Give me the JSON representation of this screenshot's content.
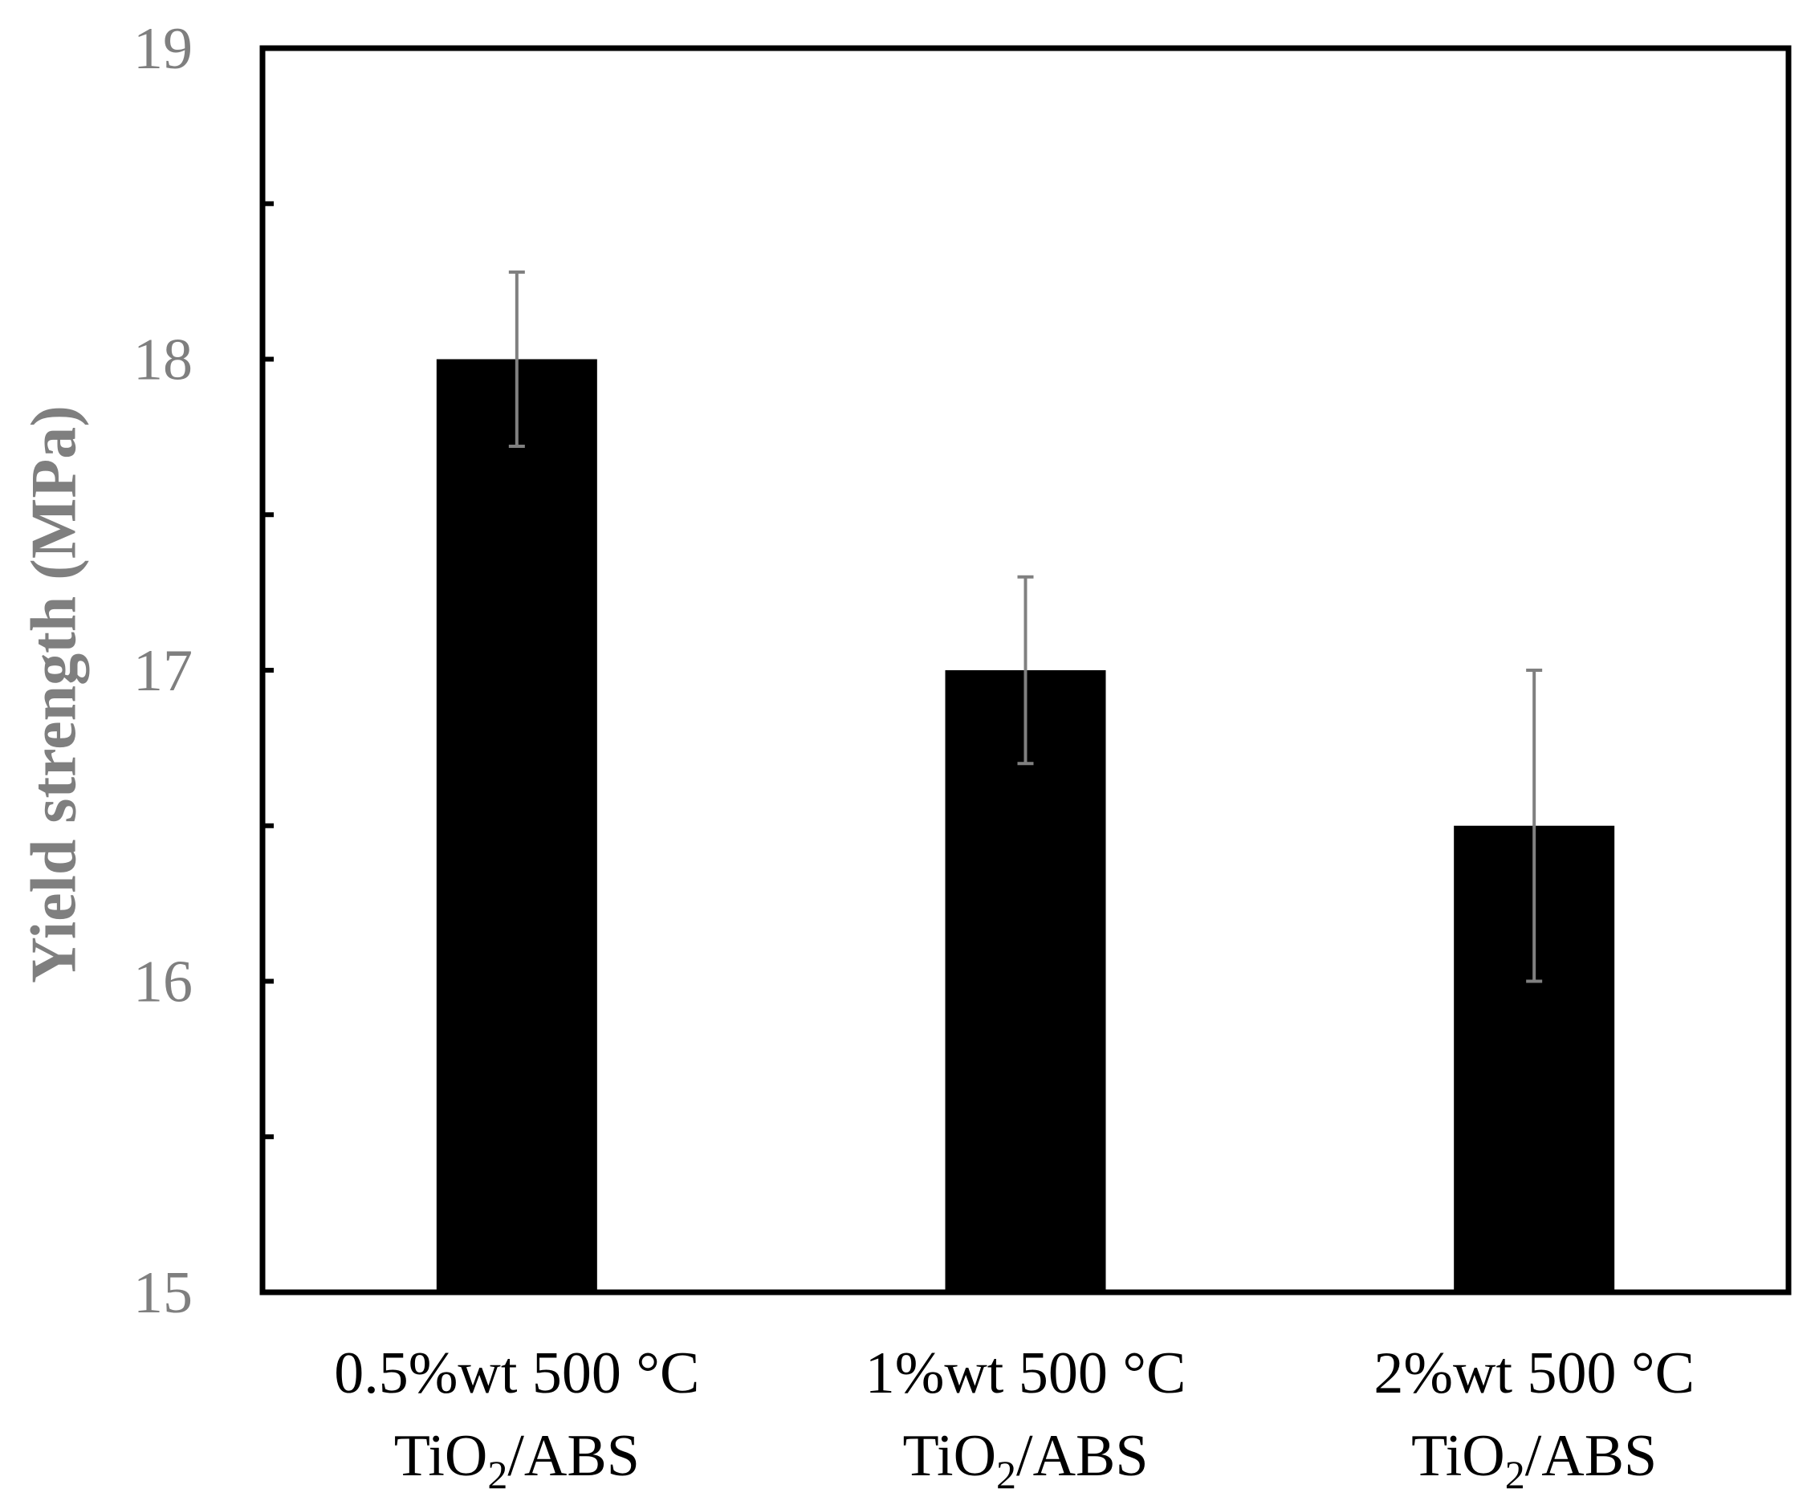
{
  "chart_data": {
    "type": "bar",
    "title": "",
    "xlabel": "",
    "ylabel": "Yield strength  (MPa)",
    "ylim": [
      15,
      19
    ],
    "yticks": [
      15,
      16,
      17,
      18,
      19
    ],
    "ytick_labels": [
      "15",
      "16",
      "17",
      "18",
      "19"
    ],
    "minor_ticks": [
      15.5,
      16.5,
      17.5,
      18.5
    ],
    "grid": false,
    "categories": [
      {
        "line1": "0.5%wt 500 °C",
        "line2_prefix": "TiO",
        "line2_sub": "2",
        "line2_suffix": "/ABS"
      },
      {
        "line1": "1%wt 500 °C",
        "line2_prefix": "TiO",
        "line2_sub": "2",
        "line2_suffix": "/ABS"
      },
      {
        "line1": "2%wt 500 °C",
        "line2_prefix": "TiO",
        "line2_sub": "2",
        "line2_suffix": "/ABS"
      }
    ],
    "values": [
      18.0,
      17.0,
      16.5
    ],
    "error_low": [
      17.72,
      16.7,
      16.0
    ],
    "error_high": [
      18.28,
      17.3,
      17.0
    ],
    "colors": {
      "bar": "#000000",
      "error_bar": "#808080",
      "axis": "#000000",
      "tick_text": "#7f7f7f",
      "axis_title": "#7f7f7f",
      "category_text": "#000000"
    }
  }
}
